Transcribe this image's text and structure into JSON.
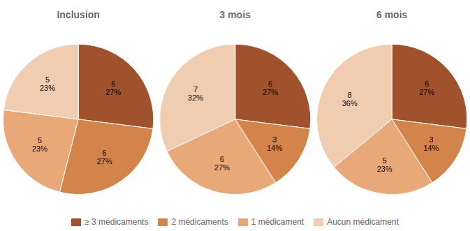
{
  "chart_data": [
    {
      "type": "pie",
      "title": "Inclusion",
      "categories": [
        "≥ 3 médicaments",
        "2 médicaments",
        "1 médicament",
        "Aucun médicament"
      ],
      "values": [
        27,
        27,
        23,
        23
      ],
      "value_labels": [
        "27%",
        "27%",
        "23%",
        "23%"
      ],
      "counts": [
        6,
        6,
        5,
        5
      ],
      "colors": [
        "#A0522D",
        "#D2844A",
        "#E8A878",
        "#F0CDB0"
      ],
      "data_labels": true,
      "legend": "bottom"
    },
    {
      "type": "pie",
      "title": "3 mois",
      "categories": [
        "≥ 3 médicaments",
        "2 médicaments",
        "1 médicament",
        "Aucun médicament"
      ],
      "values": [
        27,
        14,
        27,
        32
      ],
      "value_labels": [
        "27%",
        "14%",
        "27%",
        "32%"
      ],
      "counts": [
        6,
        3,
        6,
        7
      ],
      "colors": [
        "#A0522D",
        "#D2844A",
        "#E8A878",
        "#F0CDB0"
      ],
      "data_labels": true,
      "legend": "bottom"
    },
    {
      "type": "pie",
      "title": "6 mois",
      "categories": [
        "≥ 3 médicaments",
        "2 médicaments",
        "1 médicament",
        "Aucun médicament"
      ],
      "values": [
        27,
        14,
        23,
        36
      ],
      "value_labels": [
        "27%",
        "14%",
        "23%",
        "36%"
      ],
      "counts": [
        6,
        3,
        5,
        8
      ],
      "colors": [
        "#A0522D",
        "#D2844A",
        "#E8A878",
        "#F0CDB0"
      ],
      "data_labels": true,
      "legend": "bottom"
    }
  ]
}
